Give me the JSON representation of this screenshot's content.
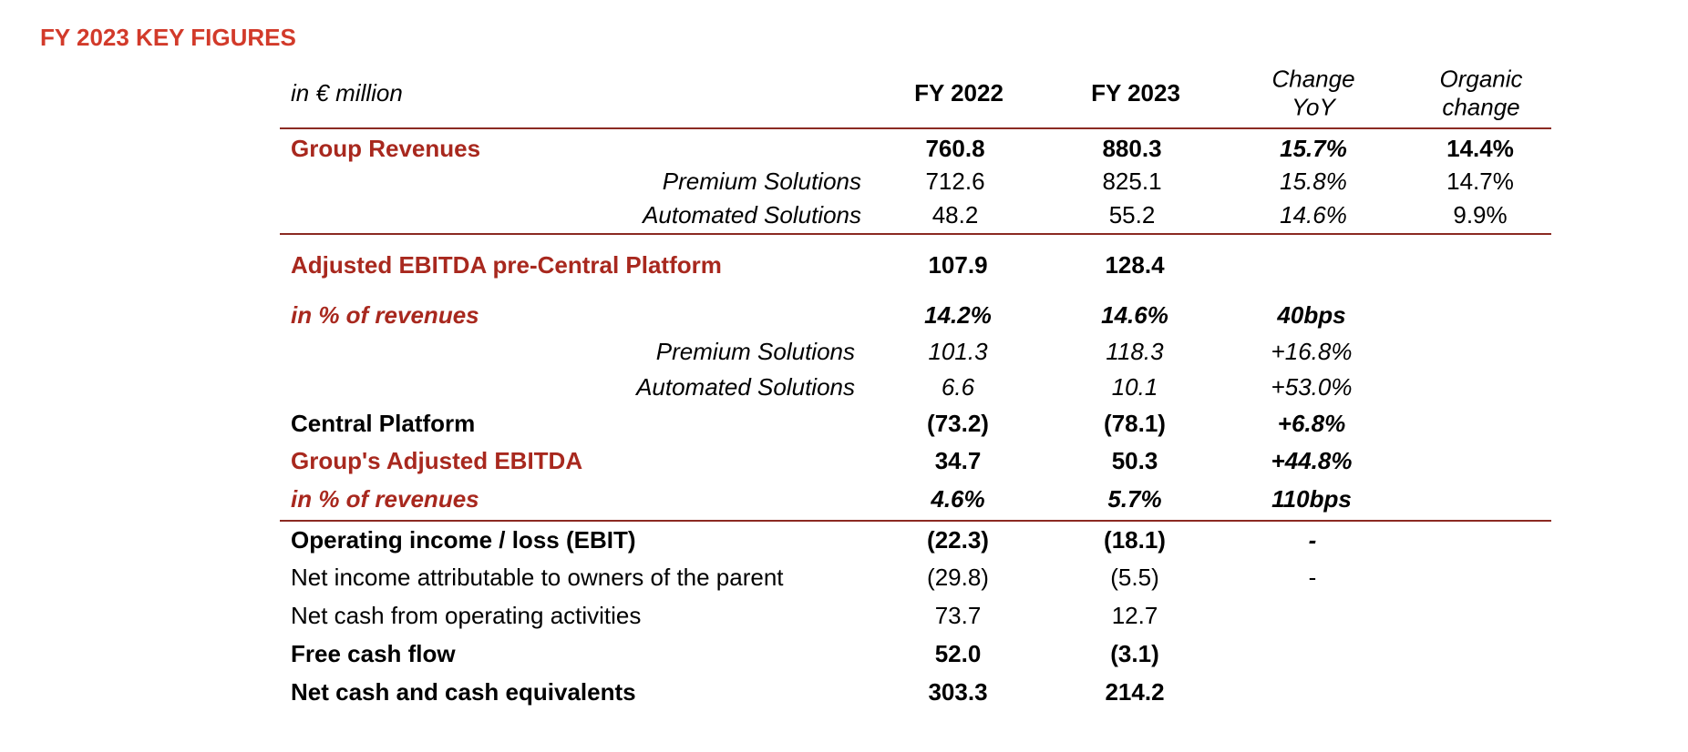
{
  "page": {
    "title": "FY 2023 KEY FIGURES"
  },
  "table": {
    "header": {
      "unit": "in € million",
      "fy2022": "FY 2022",
      "fy2023": "FY 2023",
      "change_line1": "Change",
      "change_line2": "YoY",
      "organic_line1": "Organic",
      "organic_line2": "change"
    },
    "rows": [
      {
        "label": "Group Revenues",
        "fy2022": "760.8",
        "fy2023": "880.3",
        "change": "15.7%",
        "organic": "14.4%"
      },
      {
        "label": "Premium Solutions",
        "fy2022": "712.6",
        "fy2023": "825.1",
        "change": "15.8%",
        "organic": "14.7%"
      },
      {
        "label": "Automated Solutions",
        "fy2022": "48.2",
        "fy2023": "55.2",
        "change": "14.6%",
        "organic": "9.9%"
      },
      {
        "label": "Adjusted EBITDA pre-Central Platform",
        "fy2022": "107.9",
        "fy2023": "128.4",
        "change": "",
        "organic": ""
      },
      {
        "label": "in % of revenues",
        "fy2022": "14.2%",
        "fy2023": "14.6%",
        "change": "40bps",
        "organic": ""
      },
      {
        "label": "Premium Solutions",
        "fy2022": "101.3",
        "fy2023": "118.3",
        "change": "+16.8%",
        "organic": ""
      },
      {
        "label": "Automated Solutions",
        "fy2022": "6.6",
        "fy2023": "10.1",
        "change": "+53.0%",
        "organic": ""
      },
      {
        "label": "Central Platform",
        "fy2022": "(73.2)",
        "fy2023": "(78.1)",
        "change": "+6.8%",
        "organic": ""
      },
      {
        "label": "Group's Adjusted EBITDA",
        "fy2022": "34.7",
        "fy2023": "50.3",
        "change": "+44.8%",
        "organic": ""
      },
      {
        "label": "in % of revenues",
        "fy2022": "4.6%",
        "fy2023": "5.7%",
        "change": "110bps",
        "organic": ""
      },
      {
        "label": "Operating income / loss (EBIT)",
        "fy2022": "(22.3)",
        "fy2023": "(18.1)",
        "change": "-",
        "organic": ""
      },
      {
        "label": "Net income attributable to owners of the parent",
        "fy2022": "(29.8)",
        "fy2023": "(5.5)",
        "change": "-",
        "organic": ""
      },
      {
        "label": "Net cash from operating activities",
        "fy2022": "73.7",
        "fy2023": "12.7",
        "change": "",
        "organic": ""
      },
      {
        "label": "Free cash flow",
        "fy2022": "52.0",
        "fy2023": "(3.1)",
        "change": "",
        "organic": ""
      },
      {
        "label": "Net cash and cash equivalents",
        "fy2022": "303.3",
        "fy2023": "214.2",
        "change": "",
        "organic": ""
      }
    ]
  }
}
